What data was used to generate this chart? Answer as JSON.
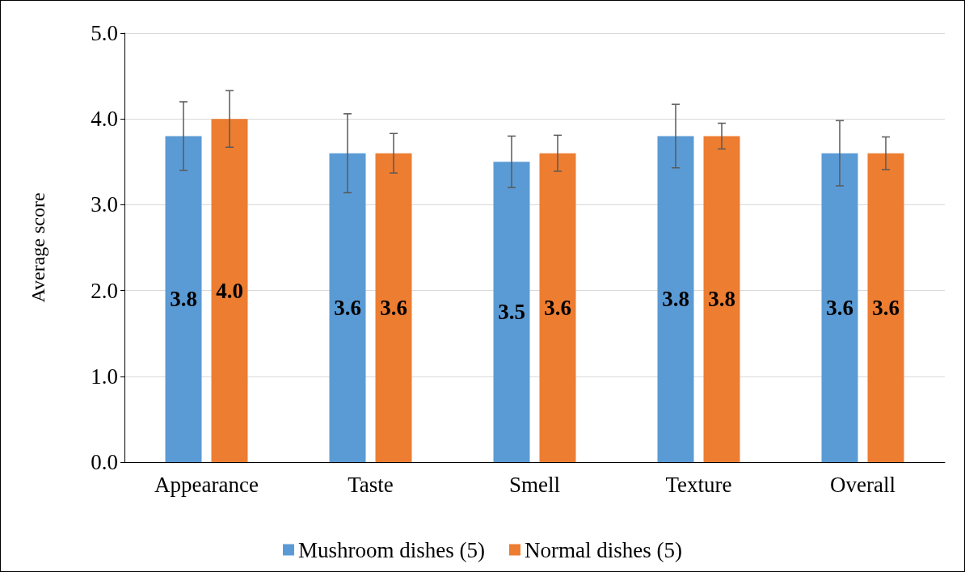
{
  "chart_data": {
    "type": "bar",
    "ylabel": "Average score",
    "categories": [
      "Appearance",
      "Taste",
      "Smell",
      "Texture",
      "Overall"
    ],
    "series": [
      {
        "name": "Mushroom dishes (5)",
        "color": "#5b9bd5",
        "values": [
          3.8,
          3.6,
          3.5,
          3.8,
          3.6
        ],
        "value_labels": [
          "3.8",
          "3.6",
          "3.5",
          "3.8",
          "3.6"
        ],
        "errors": [
          0.4,
          0.46,
          0.3,
          0.37,
          0.38
        ]
      },
      {
        "name": "Normal dishes (5)",
        "color": "#ed7d31",
        "values": [
          4.0,
          3.6,
          3.6,
          3.8,
          3.6
        ],
        "value_labels": [
          "4.0",
          "3.6",
          "3.6",
          "3.8",
          "3.6"
        ],
        "errors": [
          0.33,
          0.23,
          0.21,
          0.15,
          0.19
        ]
      }
    ],
    "ylim": [
      0,
      5
    ],
    "yticks": [
      {
        "value": 0,
        "label": "0.0"
      },
      {
        "value": 1,
        "label": "1.0"
      },
      {
        "value": 2,
        "label": "2.0"
      },
      {
        "value": 3,
        "label": "3.0"
      },
      {
        "value": 4,
        "label": "4.0"
      },
      {
        "value": 5,
        "label": "5.0"
      }
    ],
    "grid": "y",
    "legend": "bottom"
  }
}
